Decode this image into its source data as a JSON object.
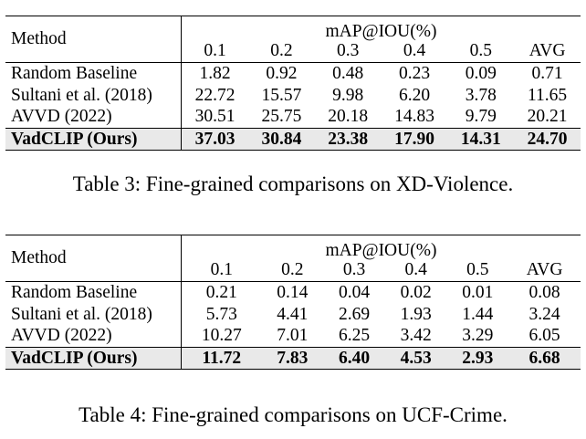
{
  "table3": {
    "header": {
      "method": "Method",
      "group": "mAP@IOU(%)",
      "columns": [
        "0.1",
        "0.2",
        "0.3",
        "0.4",
        "0.5",
        "AVG"
      ]
    },
    "rows": [
      {
        "method": "Random Baseline",
        "values": [
          "1.82",
          "0.92",
          "0.48",
          "0.23",
          "0.09",
          "0.71"
        ],
        "bold": [
          false,
          false,
          false,
          false,
          false,
          false
        ]
      },
      {
        "method": "Sultani et al. (2018)",
        "values": [
          "22.72",
          "15.57",
          "9.98",
          "6.20",
          "3.78",
          "11.65"
        ],
        "bold": [
          false,
          false,
          false,
          false,
          false,
          false
        ]
      },
      {
        "method": "AVVD (2022)",
        "values": [
          "30.51",
          "25.75",
          "20.18",
          "14.83",
          "9.79",
          "20.21"
        ],
        "bold": [
          false,
          false,
          false,
          false,
          false,
          false
        ]
      },
      {
        "method": "VadCLIP (Ours)",
        "values": [
          "37.03",
          "30.84",
          "23.38",
          "17.90",
          "14.31",
          "24.70"
        ],
        "bold": [
          true,
          true,
          true,
          true,
          true,
          true
        ]
      }
    ],
    "caption": "Table 3: Fine-grained comparisons on XD-Violence."
  },
  "table4": {
    "header": {
      "method": "Method",
      "group": "mAP@IOU(%)",
      "columns": [
        "0.1",
        "0.2",
        "0.3",
        "0.4",
        "0.5",
        "AVG"
      ]
    },
    "rows": [
      {
        "method": "Random Baseline",
        "values": [
          "0.21",
          "0.14",
          "0.04",
          "0.02",
          "0.01",
          "0.08"
        ],
        "bold": [
          false,
          false,
          false,
          false,
          false,
          false
        ]
      },
      {
        "method": "Sultani et al. (2018)",
        "values": [
          "5.73",
          "4.41",
          "2.69",
          "1.93",
          "1.44",
          "3.24"
        ],
        "bold": [
          false,
          false,
          false,
          false,
          false,
          false
        ]
      },
      {
        "method": "AVVD (2022)",
        "values": [
          "10.27",
          "7.01",
          "6.25",
          "3.42",
          "3.29",
          "6.05"
        ],
        "bold": [
          false,
          false,
          false,
          false,
          true,
          false
        ]
      },
      {
        "method": "VadCLIP (Ours)",
        "values": [
          "11.72",
          "7.83",
          "6.40",
          "4.53",
          "2.93",
          "6.68"
        ],
        "bold": [
          true,
          true,
          true,
          true,
          false,
          true
        ]
      }
    ],
    "caption": "Table 4: Fine-grained comparisons on UCF-Crime."
  }
}
